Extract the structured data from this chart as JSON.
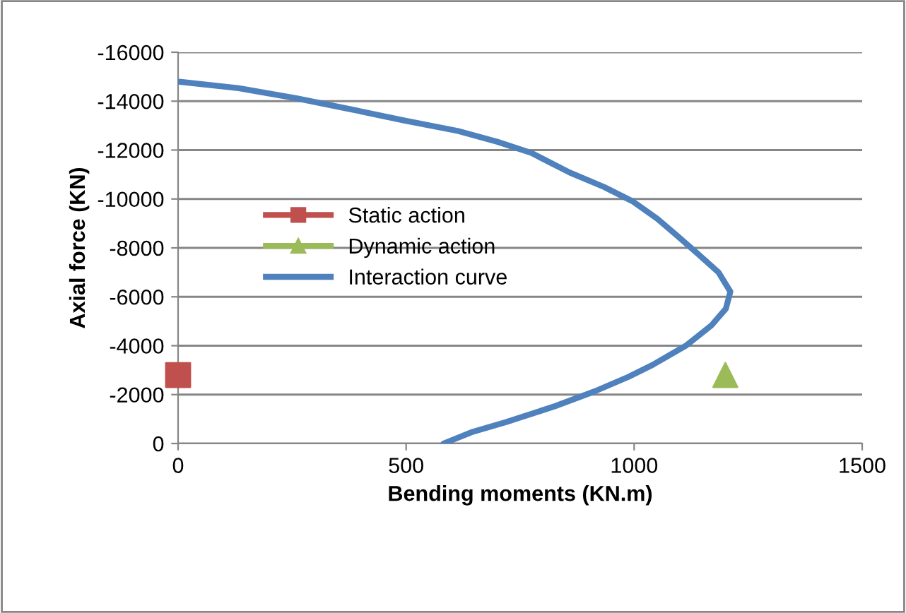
{
  "chart_data": {
    "type": "line",
    "xlabel": "Bending moments (KN.m)",
    "ylabel": "Axial force (KN)",
    "xlim": [
      0,
      1500
    ],
    "xticks": [
      0,
      500,
      1000,
      1500
    ],
    "ylim": [
      0,
      -16000
    ],
    "yticks": [
      0,
      -2000,
      -4000,
      -6000,
      -8000,
      -10000,
      -12000,
      -14000,
      -16000
    ],
    "grid": "y",
    "legend": "center left",
    "series": [
      {
        "name": "Static action",
        "type": "scatter",
        "marker": "square",
        "color": "#c0504d",
        "x": [
          0
        ],
        "values": [
          -2800
        ]
      },
      {
        "name": "Dynamic action",
        "type": "scatter",
        "marker": "triangle",
        "color": "#9bbb59",
        "x": [
          1200
        ],
        "values": [
          -2800
        ]
      },
      {
        "name": "Interaction curve",
        "marker": "none",
        "color": "#4f81bd",
        "x": [
          0,
          133,
          261,
          368,
          496,
          614,
          700,
          775,
          859,
          934,
          998,
          1051,
          1094,
          1137,
          1185,
          1211,
          1201,
          1169,
          1115,
          1041,
          988,
          913,
          827,
          720,
          646,
          582
        ],
        "values": [
          -14800,
          -14530,
          -14110,
          -13710,
          -13210,
          -12780,
          -12340,
          -11880,
          -11080,
          -10490,
          -9890,
          -9190,
          -8500,
          -7800,
          -7000,
          -6210,
          -5510,
          -4820,
          -4020,
          -3220,
          -2730,
          -2130,
          -1530,
          -880,
          -480,
          0
        ]
      }
    ]
  }
}
